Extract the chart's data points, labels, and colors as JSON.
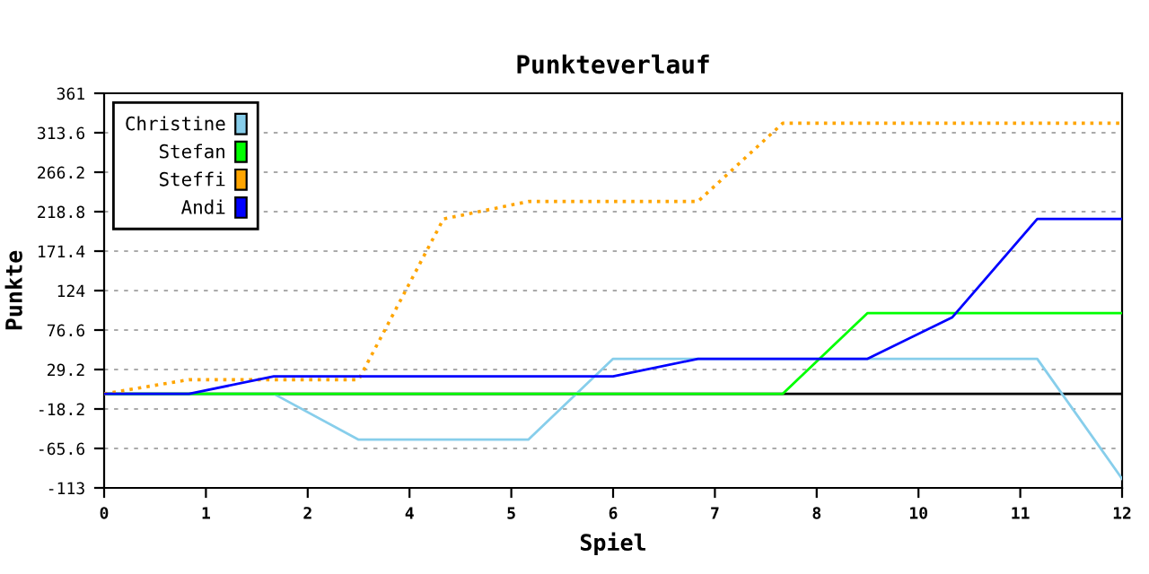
{
  "chart_data": {
    "type": "line",
    "title": "Punkteverlauf",
    "xlabel": "Spiel",
    "ylabel": "Punkte",
    "x": [
      0,
      1,
      2,
      3,
      4,
      5,
      6,
      7,
      8,
      9,
      10,
      11,
      12
    ],
    "series": [
      {
        "name": "Christine",
        "color": "#87ceeb",
        "values": [
          0,
          0,
          0,
          -55,
          -55,
          -55,
          42,
          42,
          42,
          42,
          42,
          42,
          -102
        ]
      },
      {
        "name": "Stefan",
        "color": "#00ff00",
        "values": [
          0,
          0,
          0,
          0,
          0,
          0,
          0,
          0,
          0,
          97,
          97,
          97,
          97
        ]
      },
      {
        "name": "Steffi",
        "color": "#ffa500",
        "line_style": "dotted",
        "values": [
          0,
          17,
          17,
          17,
          210,
          231,
          231,
          231,
          325,
          325,
          325,
          325,
          325
        ]
      },
      {
        "name": "Andi",
        "color": "#0000ff",
        "values": [
          0,
          0,
          21,
          21,
          21,
          21,
          21,
          42,
          42,
          42,
          92,
          210,
          210
        ]
      }
    ],
    "xlim": [
      0,
      12
    ],
    "xticks": [
      0,
      {
        "value": 1.2,
        "label": "1"
      },
      {
        "value": 2.4,
        "label": "2"
      },
      {
        "value": 3.6,
        "label": "4"
      },
      {
        "value": 4.8,
        "label": "5"
      },
      6,
      {
        "value": 7.2,
        "label": "7"
      },
      {
        "value": 8.4,
        "label": "8"
      },
      {
        "value": 9.6,
        "label": "10"
      },
      {
        "value": 10.8,
        "label": "11"
      },
      12
    ],
    "ylim": [
      -113,
      361
    ],
    "yticks": [
      -113,
      -65.6,
      -18.2,
      29.2,
      76.6,
      124,
      171.4,
      218.8,
      266.2,
      313.6,
      361
    ],
    "ref_lines": [
      {
        "axis": "y",
        "value": 0,
        "color": "#000000"
      }
    ],
    "grid": "y",
    "legend": "top left",
    "line_style": "solid",
    "marker": "none"
  }
}
